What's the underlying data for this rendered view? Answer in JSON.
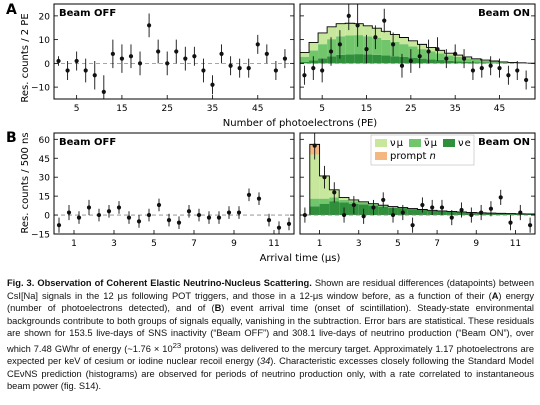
{
  "panels": [
    {
      "letter": "A",
      "ylabel": "Res. counts / 2 PE",
      "xlabel": "Number of photoelectrons (PE)",
      "ylim": [
        -15,
        25
      ],
      "yticks": [
        -10,
        0,
        10,
        20
      ],
      "left": {
        "label": "Beam OFF",
        "xlim": [
          0,
          53
        ],
        "xticks": [
          5,
          15,
          25,
          35,
          45
        ],
        "points": [
          [
            1,
            1,
            2
          ],
          [
            3,
            -3,
            4
          ],
          [
            5,
            1,
            4
          ],
          [
            7,
            -3,
            5
          ],
          [
            9,
            -5,
            6
          ],
          [
            11,
            -12,
            7
          ],
          [
            13,
            4,
            6
          ],
          [
            15,
            2,
            6
          ],
          [
            17,
            3,
            5
          ],
          [
            19,
            0,
            5
          ],
          [
            21,
            16,
            5
          ],
          [
            23,
            5,
            5
          ],
          [
            25,
            0,
            5
          ],
          [
            27,
            5,
            5
          ],
          [
            29,
            2,
            5
          ],
          [
            31,
            3,
            4
          ],
          [
            33,
            -3,
            5
          ],
          [
            35,
            -9,
            4
          ],
          [
            37,
            4,
            4
          ],
          [
            39,
            -1,
            4
          ],
          [
            41,
            -2,
            4
          ],
          [
            43,
            -2,
            4
          ],
          [
            45,
            8,
            4
          ],
          [
            47,
            4,
            4
          ],
          [
            49,
            -3,
            4
          ],
          [
            51,
            2,
            4
          ]
        ]
      },
      "right": {
        "label": "Beam ON",
        "xlim": [
          0,
          53
        ],
        "xticks": [
          5,
          15,
          25,
          35,
          45
        ],
        "points": [
          [
            1,
            -5,
            4
          ],
          [
            3,
            -2,
            5
          ],
          [
            5,
            -3,
            5
          ],
          [
            7,
            5,
            6
          ],
          [
            9,
            8,
            6
          ],
          [
            11,
            20,
            6
          ],
          [
            13,
            16,
            9
          ],
          [
            15,
            6,
            6
          ],
          [
            17,
            11,
            5
          ],
          [
            19,
            18,
            5
          ],
          [
            21,
            8,
            5
          ],
          [
            23,
            -1,
            5
          ],
          [
            25,
            1,
            5
          ],
          [
            27,
            3,
            5
          ],
          [
            29,
            5,
            5
          ],
          [
            31,
            6,
            5
          ],
          [
            33,
            2,
            4
          ],
          [
            35,
            4,
            4
          ],
          [
            37,
            2,
            4
          ],
          [
            39,
            -3,
            4
          ],
          [
            41,
            -2,
            4
          ],
          [
            43,
            -1,
            4
          ],
          [
            45,
            -2,
            4
          ],
          [
            47,
            -5,
            4
          ],
          [
            49,
            -3,
            4
          ],
          [
            51,
            -7,
            4
          ]
        ],
        "histogram": [
          [
            1.8,
            2.2,
            0.6,
            0
          ],
          [
            3.4,
            4.2,
            1.2,
            0
          ],
          [
            4.7,
            6.0,
            2.1,
            0
          ],
          [
            5.2,
            7.2,
            3.0,
            0
          ],
          [
            5.3,
            7.8,
            3.6,
            0
          ],
          [
            5.1,
            8.0,
            3.8,
            0
          ],
          [
            4.8,
            8.0,
            3.9,
            0
          ],
          [
            4.4,
            7.6,
            3.8,
            0
          ],
          [
            4.0,
            7.2,
            3.6,
            0
          ],
          [
            3.6,
            6.6,
            3.3,
            0
          ],
          [
            3.2,
            6.0,
            3.0,
            0
          ],
          [
            2.8,
            5.4,
            2.7,
            0
          ],
          [
            2.4,
            4.7,
            2.4,
            0
          ],
          [
            2.0,
            4.0,
            2.0,
            0
          ],
          [
            1.6,
            3.4,
            1.7,
            0
          ],
          [
            1.3,
            2.8,
            1.4,
            0
          ],
          [
            1.0,
            2.2,
            1.1,
            0
          ],
          [
            0.8,
            1.8,
            0.9,
            0
          ],
          [
            0.6,
            1.4,
            0.7,
            0
          ],
          [
            0.4,
            1.0,
            0.5,
            0
          ],
          [
            0.3,
            0.7,
            0.4,
            0
          ],
          [
            0.2,
            0.5,
            0.3,
            0
          ],
          [
            0.1,
            0.3,
            0.2,
            0
          ],
          [
            0.1,
            0.2,
            0.1,
            0
          ],
          [
            0.05,
            0.1,
            0.1,
            0
          ],
          [
            0.0,
            0.1,
            0.0,
            0
          ]
        ]
      }
    },
    {
      "letter": "B",
      "ylabel": "Res. counts / 500 ns",
      "xlabel": "Arrival time (μs)",
      "ylim": [
        -15,
        65
      ],
      "yticks": [
        -15,
        0,
        15,
        30,
        45,
        60
      ],
      "left": {
        "label": "Beam OFF",
        "xlim": [
          0,
          12
        ],
        "xticks": [
          1,
          3,
          5,
          7,
          9,
          11
        ],
        "points": [
          [
            0.25,
            -8,
            6
          ],
          [
            0.75,
            2,
            6
          ],
          [
            1.25,
            -2,
            5
          ],
          [
            1.75,
            6,
            6
          ],
          [
            2.25,
            0,
            5
          ],
          [
            2.75,
            3,
            5
          ],
          [
            3.25,
            6,
            5
          ],
          [
            3.75,
            -2,
            5
          ],
          [
            4.25,
            -5,
            5
          ],
          [
            4.75,
            0,
            5
          ],
          [
            5.25,
            8,
            5
          ],
          [
            5.75,
            -4,
            5
          ],
          [
            6.25,
            -6,
            5
          ],
          [
            6.75,
            3,
            5
          ],
          [
            7.25,
            0,
            5
          ],
          [
            7.75,
            -2,
            5
          ],
          [
            8.25,
            -2,
            5
          ],
          [
            8.75,
            2,
            5
          ],
          [
            9.25,
            2,
            5
          ],
          [
            9.75,
            16,
            5
          ],
          [
            10.25,
            13,
            5
          ],
          [
            10.75,
            -4,
            5
          ],
          [
            11.25,
            -10,
            5
          ],
          [
            11.75,
            -7,
            5
          ]
        ]
      },
      "right": {
        "label": "Beam ON",
        "xlim": [
          0,
          12
        ],
        "xticks": [
          1,
          3,
          5,
          7,
          9,
          11
        ],
        "points": [
          [
            0.25,
            0,
            6
          ],
          [
            0.75,
            55,
            11
          ],
          [
            1.25,
            30,
            9
          ],
          [
            1.75,
            18,
            8
          ],
          [
            2.25,
            0,
            6
          ],
          [
            2.75,
            8,
            7
          ],
          [
            3.25,
            -1,
            6
          ],
          [
            3.75,
            6,
            6
          ],
          [
            4.25,
            12,
            6
          ],
          [
            4.75,
            0,
            6
          ],
          [
            5.25,
            2,
            6
          ],
          [
            5.75,
            -8,
            6
          ],
          [
            6.25,
            8,
            6
          ],
          [
            6.75,
            6,
            6
          ],
          [
            7.25,
            6,
            6
          ],
          [
            7.75,
            -2,
            6
          ],
          [
            8.25,
            4,
            6
          ],
          [
            8.75,
            0,
            6
          ],
          [
            9.25,
            2,
            6
          ],
          [
            9.75,
            5,
            6
          ],
          [
            10.25,
            14,
            6
          ],
          [
            10.75,
            -6,
            6
          ],
          [
            11.25,
            2,
            6
          ],
          [
            11.75,
            -8,
            6
          ]
        ],
        "histogram": [
          [
            0.0,
            0.0,
            0.0,
            0
          ],
          [
            35,
            6,
            7,
            8
          ],
          [
            18,
            4,
            9,
            0
          ],
          [
            6,
            3,
            11,
            0
          ],
          [
            2,
            2,
            10,
            0
          ],
          [
            1,
            2,
            9,
            0
          ],
          [
            0.5,
            1.5,
            8.5,
            0
          ],
          [
            0.3,
            1.2,
            7.5,
            0
          ],
          [
            0.2,
            1.0,
            6.6,
            0
          ],
          [
            0.1,
            0.8,
            5.8,
            0
          ],
          [
            0.1,
            0.6,
            5.2,
            0
          ],
          [
            0,
            0.5,
            4.6,
            0
          ],
          [
            0,
            0.4,
            4.0,
            0
          ],
          [
            0,
            0.3,
            3.5,
            0
          ],
          [
            0,
            0.25,
            3.0,
            0
          ],
          [
            0,
            0.2,
            2.7,
            0
          ],
          [
            0,
            0.15,
            2.3,
            0
          ],
          [
            0,
            0.1,
            2.0,
            0
          ],
          [
            0,
            0.1,
            1.7,
            0
          ],
          [
            0,
            0.1,
            1.5,
            0
          ],
          [
            0,
            0.05,
            1.3,
            0
          ],
          [
            0,
            0.05,
            1.1,
            0
          ],
          [
            0,
            0,
            1.0,
            0
          ],
          [
            0,
            0,
            0.9,
            0
          ]
        ],
        "legend": {
          "numu": "ν μ",
          "numubar": "ν̄ μ",
          "nue": "ν e",
          "prompt": "prompt ",
          "prompt_n": "n"
        }
      }
    }
  ],
  "colors": {
    "numu": "#c7e89c",
    "numubar": "#71c56b",
    "nue": "#2f8f3a",
    "prompt": "#f4b77f",
    "points": "#111111",
    "zero_line": "#888888"
  },
  "caption": {
    "title": "Fig. 3. Observation of Coherent Elastic Neutrino-Nucleus Scattering.",
    "s1": " Shown are residual differences (datapoints) between CsI[Na] signals in the 12 μs following POT triggers, and those in a 12-μs window before, as a function of their (",
    "A": "A",
    "s2": ") energy (number of photoelectrons detected), and of (",
    "B": "B",
    "s3": ") event arrival time (onset of scintillation). Steady-state environmental backgrounds contribute to both groups of signals equally, vanishing in the subtraction. Error bars are statistical. These residuals are shown for 153.5 live-days of SNS inactivity (“Beam OFF”) and 308.1 live-days of neutrino production (“Beam ON”), over which 7.48 GWhr of energy (~1.76 × 10",
    "sup": "23",
    "s4": " protons) was delivered to the mercury target. Approximately 1.17 photoelectrons are expected per keV of cesium or iodine nuclear recoil energy (",
    "ref": "34",
    "s5": "). Characteristic excesses closely following the Standard Model CEνNS prediction (histograms) are observed for periods of neutrino production only, with a rate correlated to instantaneous beam power (fig. S14)."
  }
}
